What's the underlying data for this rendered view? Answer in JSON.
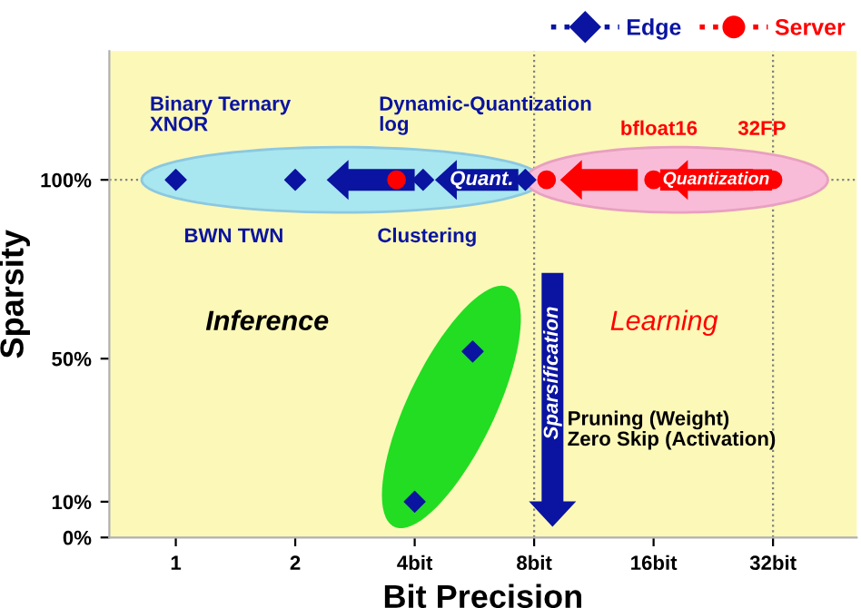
{
  "chart_data": {
    "type": "scatter",
    "xlabel": "Bit Precision",
    "ylabel": "Sparsity",
    "log": "x",
    "xlim": [
      0.68,
      52
    ],
    "xticks": [
      1,
      2,
      {
        "value": 4,
        "label": "4bit"
      },
      {
        "value": 8,
        "label": "8bit"
      },
      {
        "value": 16,
        "label": "16bit"
      },
      {
        "value": 32,
        "label": "32bit"
      }
    ],
    "ylim": [
      0,
      136
    ],
    "yticks": [
      {
        "value": 0,
        "label": "0%"
      },
      {
        "value": 10,
        "label": "10%"
      },
      {
        "value": 50,
        "label": "50%"
      },
      {
        "value": 100,
        "label": "100%"
      }
    ],
    "grid": false,
    "legend": "top right",
    "line_style": "dotted",
    "series": [
      {
        "name": "Edge",
        "color": "#0a14a0",
        "marker": "diamond",
        "x": [
          1,
          2,
          4.2,
          7.6,
          4,
          5.6
        ],
        "values": [
          100,
          100,
          100,
          100,
          10,
          52
        ]
      },
      {
        "name": "Server",
        "color": "#ff0000",
        "marker": "circle",
        "x": [
          8.6,
          16,
          32
        ],
        "values": [
          100,
          100,
          100
        ]
      },
      {
        "color": "#ff0000",
        "marker": "circle",
        "x": [
          3.6
        ],
        "values": [
          100
        ]
      }
    ],
    "ref_lines": [
      {
        "axis": "y",
        "value": 100,
        "color": "#808080",
        "line_style": "dotted"
      },
      {
        "axis": "x",
        "value": 8,
        "color": "#808080",
        "line_style": "dotted"
      },
      {
        "axis": "x",
        "value": 32,
        "color": "#808080",
        "line_style": "dotted"
      }
    ],
    "annotations": [
      "Binary Ternary\nXNOR",
      "Dynamic-Quantization\nlog",
      "BWN TWN",
      "Clustering",
      "bfloat16",
      "32FP",
      "Quant.",
      "Quantization",
      "Inference",
      "Learning",
      "Sparsification",
      "Pruning (Weight)\nZero Skip (Activation)"
    ]
  }
}
